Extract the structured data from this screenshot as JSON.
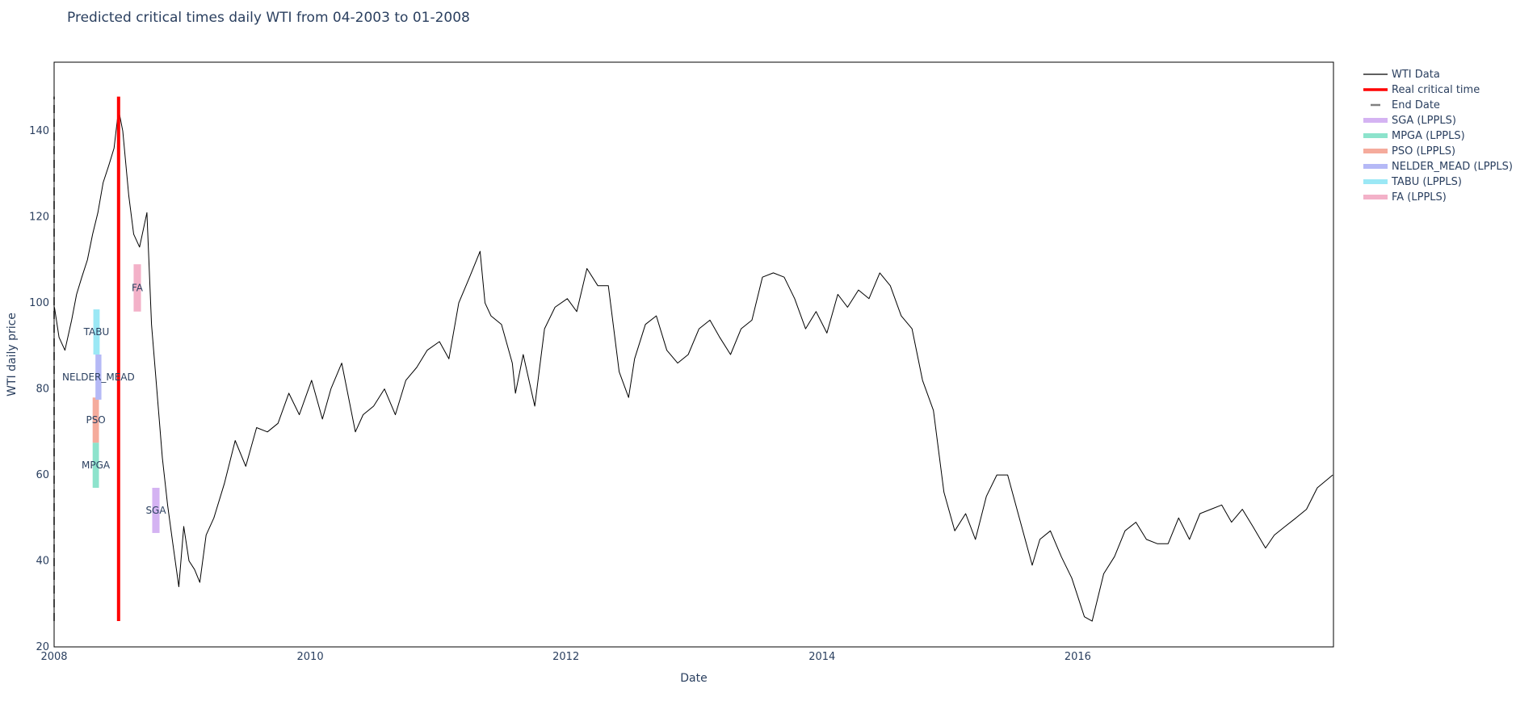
{
  "chart_data": {
    "type": "line",
    "title": "Predicted critical times daily WTI from 04-2003 to 01-2008",
    "xlabel": "Date",
    "ylabel": "WTI daily price",
    "xlim": [
      "2008-01-01",
      "2017-12-31"
    ],
    "ylim": [
      20,
      156
    ],
    "x_ticks": [
      "2008",
      "2010",
      "2012",
      "2014",
      "2016"
    ],
    "y_ticks": [
      20,
      40,
      60,
      80,
      100,
      120,
      140
    ],
    "grid": false,
    "legend_position": "right",
    "series": [
      {
        "name": "WTI Data",
        "color": "#000000",
        "points": [
          [
            "2008-01-02",
            99
          ],
          [
            "2008-01-15",
            92
          ],
          [
            "2008-02-01",
            89
          ],
          [
            "2008-02-20",
            96
          ],
          [
            "2008-03-05",
            102
          ],
          [
            "2008-03-20",
            106
          ],
          [
            "2008-04-05",
            110
          ],
          [
            "2008-04-20",
            116
          ],
          [
            "2008-05-05",
            121
          ],
          [
            "2008-05-20",
            128
          ],
          [
            "2008-06-05",
            132
          ],
          [
            "2008-06-20",
            136
          ],
          [
            "2008-07-03",
            145
          ],
          [
            "2008-07-15",
            140
          ],
          [
            "2008-08-01",
            125
          ],
          [
            "2008-08-15",
            116
          ],
          [
            "2008-09-01",
            113
          ],
          [
            "2008-09-22",
            121
          ],
          [
            "2008-10-05",
            95
          ],
          [
            "2008-10-20",
            80
          ],
          [
            "2008-11-05",
            64
          ],
          [
            "2008-11-20",
            53
          ],
          [
            "2008-12-05",
            44
          ],
          [
            "2008-12-22",
            34
          ],
          [
            "2009-01-05",
            48
          ],
          [
            "2009-01-20",
            40
          ],
          [
            "2009-02-05",
            38
          ],
          [
            "2009-02-20",
            35
          ],
          [
            "2009-03-10",
            46
          ],
          [
            "2009-04-01",
            50
          ],
          [
            "2009-05-01",
            58
          ],
          [
            "2009-06-01",
            68
          ],
          [
            "2009-07-01",
            62
          ],
          [
            "2009-08-01",
            71
          ],
          [
            "2009-09-01",
            70
          ],
          [
            "2009-10-01",
            72
          ],
          [
            "2009-11-01",
            79
          ],
          [
            "2009-12-01",
            74
          ],
          [
            "2010-01-05",
            82
          ],
          [
            "2010-02-05",
            73
          ],
          [
            "2010-03-01",
            80
          ],
          [
            "2010-04-01",
            86
          ],
          [
            "2010-05-10",
            70
          ],
          [
            "2010-06-01",
            74
          ],
          [
            "2010-07-01",
            76
          ],
          [
            "2010-08-01",
            80
          ],
          [
            "2010-09-01",
            74
          ],
          [
            "2010-10-01",
            82
          ],
          [
            "2010-11-01",
            85
          ],
          [
            "2010-12-01",
            89
          ],
          [
            "2011-01-05",
            91
          ],
          [
            "2011-02-01",
            87
          ],
          [
            "2011-03-01",
            100
          ],
          [
            "2011-04-01",
            106
          ],
          [
            "2011-05-01",
            112
          ],
          [
            "2011-05-15",
            100
          ],
          [
            "2011-06-01",
            97
          ],
          [
            "2011-07-01",
            95
          ],
          [
            "2011-08-01",
            86
          ],
          [
            "2011-08-10",
            79
          ],
          [
            "2011-09-01",
            88
          ],
          [
            "2011-10-04",
            76
          ],
          [
            "2011-11-01",
            94
          ],
          [
            "2011-12-01",
            99
          ],
          [
            "2012-01-05",
            101
          ],
          [
            "2012-02-01",
            98
          ],
          [
            "2012-03-01",
            108
          ],
          [
            "2012-04-01",
            104
          ],
          [
            "2012-05-01",
            104
          ],
          [
            "2012-06-01",
            84
          ],
          [
            "2012-06-28",
            78
          ],
          [
            "2012-07-15",
            87
          ],
          [
            "2012-08-15",
            95
          ],
          [
            "2012-09-15",
            97
          ],
          [
            "2012-10-15",
            89
          ],
          [
            "2012-11-15",
            86
          ],
          [
            "2012-12-15",
            88
          ],
          [
            "2013-01-15",
            94
          ],
          [
            "2013-02-15",
            96
          ],
          [
            "2013-03-15",
            92
          ],
          [
            "2013-04-15",
            88
          ],
          [
            "2013-05-15",
            94
          ],
          [
            "2013-06-15",
            96
          ],
          [
            "2013-07-15",
            106
          ],
          [
            "2013-08-15",
            107
          ],
          [
            "2013-09-15",
            106
          ],
          [
            "2013-10-15",
            101
          ],
          [
            "2013-11-15",
            94
          ],
          [
            "2013-12-15",
            98
          ],
          [
            "2014-01-15",
            93
          ],
          [
            "2014-02-15",
            102
          ],
          [
            "2014-03-15",
            99
          ],
          [
            "2014-04-15",
            103
          ],
          [
            "2014-05-15",
            101
          ],
          [
            "2014-06-15",
            107
          ],
          [
            "2014-07-15",
            104
          ],
          [
            "2014-08-15",
            97
          ],
          [
            "2014-09-15",
            94
          ],
          [
            "2014-10-15",
            82
          ],
          [
            "2014-11-15",
            75
          ],
          [
            "2014-12-15",
            56
          ],
          [
            "2015-01-15",
            47
          ],
          [
            "2015-02-15",
            51
          ],
          [
            "2015-03-15",
            45
          ],
          [
            "2015-04-15",
            55
          ],
          [
            "2015-05-15",
            60
          ],
          [
            "2015-06-15",
            60
          ],
          [
            "2015-07-15",
            51
          ],
          [
            "2015-08-24",
            39
          ],
          [
            "2015-09-15",
            45
          ],
          [
            "2015-10-15",
            47
          ],
          [
            "2015-11-15",
            41
          ],
          [
            "2015-12-15",
            36
          ],
          [
            "2016-01-20",
            27
          ],
          [
            "2016-02-11",
            26
          ],
          [
            "2016-03-15",
            37
          ],
          [
            "2016-04-15",
            41
          ],
          [
            "2016-05-15",
            47
          ],
          [
            "2016-06-15",
            49
          ],
          [
            "2016-07-15",
            45
          ],
          [
            "2016-08-15",
            44
          ],
          [
            "2016-09-15",
            44
          ],
          [
            "2016-10-15",
            50
          ],
          [
            "2016-11-15",
            45
          ],
          [
            "2016-12-15",
            51
          ],
          [
            "2017-01-15",
            52
          ],
          [
            "2017-02-15",
            53
          ],
          [
            "2017-03-15",
            49
          ],
          [
            "2017-04-15",
            52
          ],
          [
            "2017-05-15",
            48
          ],
          [
            "2017-06-20",
            43
          ],
          [
            "2017-07-15",
            46
          ],
          [
            "2017-08-15",
            48
          ],
          [
            "2017-09-15",
            50
          ],
          [
            "2017-10-15",
            52
          ],
          [
            "2017-11-15",
            57
          ],
          [
            "2017-12-29",
            60
          ]
        ]
      },
      {
        "name": "Real critical time",
        "color": "#ff0000",
        "x": "2008-07-03",
        "y_range": [
          26,
          148
        ]
      },
      {
        "name": "End Date",
        "color": "#808080",
        "x": "2008-01-01",
        "y_range": [
          26,
          148
        ]
      }
    ],
    "prediction_ranges": [
      {
        "name": "SGA (LPPLS)",
        "label": "SGA",
        "color": "#d4b3f2",
        "x_range": [
          "2008-10-07",
          "2008-10-28"
        ],
        "y_range": [
          46.5,
          57
        ]
      },
      {
        "name": "MPGA (LPPLS)",
        "label": "MPGA",
        "color": "#8de3cc",
        "x_range": [
          "2008-04-20",
          "2008-05-08"
        ],
        "y_range": [
          57,
          67.5
        ]
      },
      {
        "name": "PSO (LPPLS)",
        "label": "PSO",
        "color": "#f5ab9c",
        "x_range": [
          "2008-04-20",
          "2008-05-08"
        ],
        "y_range": [
          67.5,
          78
        ]
      },
      {
        "name": "NELDER_MEAD (LPPLS)",
        "label": "NELDER_MEAD",
        "color": "#b5b9f6",
        "x_range": [
          "2008-04-28",
          "2008-05-15"
        ],
        "y_range": [
          77.5,
          88
        ]
      },
      {
        "name": "TABU (LPPLS)",
        "label": "TABU",
        "color": "#9be8f5",
        "x_range": [
          "2008-04-22",
          "2008-05-10"
        ],
        "y_range": [
          88,
          98.5
        ]
      },
      {
        "name": "FA (LPPLS)",
        "label": "FA",
        "color": "#f3b1c8",
        "x_range": [
          "2008-08-15",
          "2008-09-05"
        ],
        "y_range": [
          98,
          109
        ]
      }
    ]
  }
}
